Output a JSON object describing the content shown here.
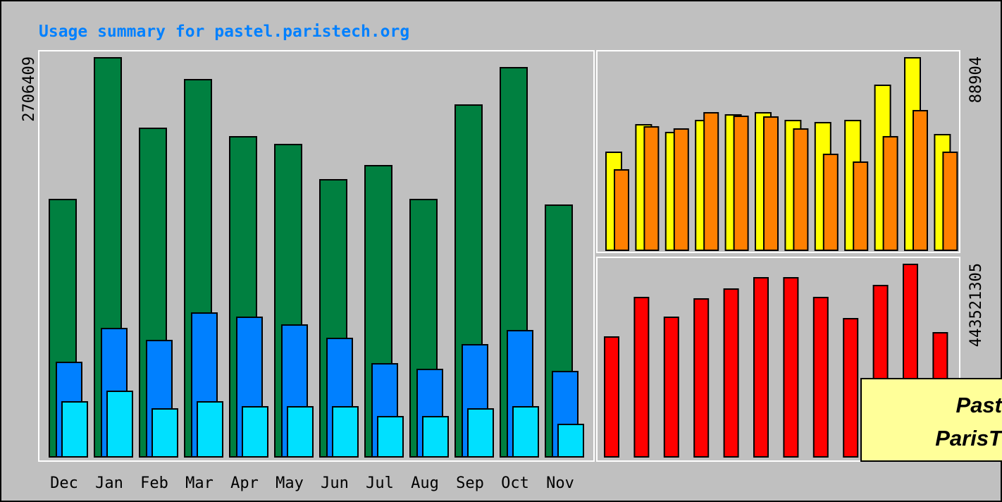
{
  "chart_data": [
    {
      "type": "bar",
      "title": "Usage summary for pastel.paristech.org",
      "categories": [
        "Dec",
        "Jan",
        "Feb",
        "Mar",
        "Apr",
        "May",
        "Jun",
        "Jul",
        "Aug",
        "Sep",
        "Oct",
        "Nov"
      ],
      "ylim": [
        0,
        2706409
      ],
      "yticks": [
        2706409
      ],
      "series": [
        {
          "color": "#008040",
          "values": [
            1745300,
            2706409,
            2228200,
            2558100,
            2170800,
            2118200,
            1879200,
            1974800,
            1745300,
            2386000,
            2639400,
            1707000
          ]
        },
        {
          "color": "#0080ff",
          "values": [
            640700,
            870300,
            789000,
            975400,
            946800,
            894200,
            803300,
            631200,
            592900,
            760300,
            855900,
            578600
          ]
        },
        {
          "color": "#00e0ff",
          "values": [
            373000,
            444700,
            325100,
            373000,
            339500,
            339500,
            339500,
            272600,
            272600,
            325100,
            339500,
            220000
          ]
        }
      ]
    },
    {
      "type": "bar",
      "ylim": [
        0,
        88904
      ],
      "yticks": [
        88904
      ],
      "series": [
        {
          "color": "#ffff00",
          "values": [
            45270,
            57970,
            54390,
            59930,
            62530,
            63510,
            59930,
            58950,
            59930,
            76210,
            88904,
            53410
          ]
        },
        {
          "color": "#ff8000",
          "values": [
            37130,
            57000,
            56020,
            63510,
            61880,
            61560,
            56020,
            44300,
            40710,
            52440,
            64490,
            45270
          ]
        }
      ]
    },
    {
      "type": "bar",
      "ylim": [
        0,
        443521305
      ],
      "yticks": [
        443521305
      ],
      "series": [
        {
          "color": "#ff0000",
          "values": [
            276185000,
            367164000,
            321675000,
            363915000,
            386660000,
            412653000,
            412653000,
            367164000,
            318426000,
            394783000,
            443521305,
            285933000
          ]
        }
      ]
    }
  ],
  "overlay": [
    "Past",
    "ParisT"
  ]
}
